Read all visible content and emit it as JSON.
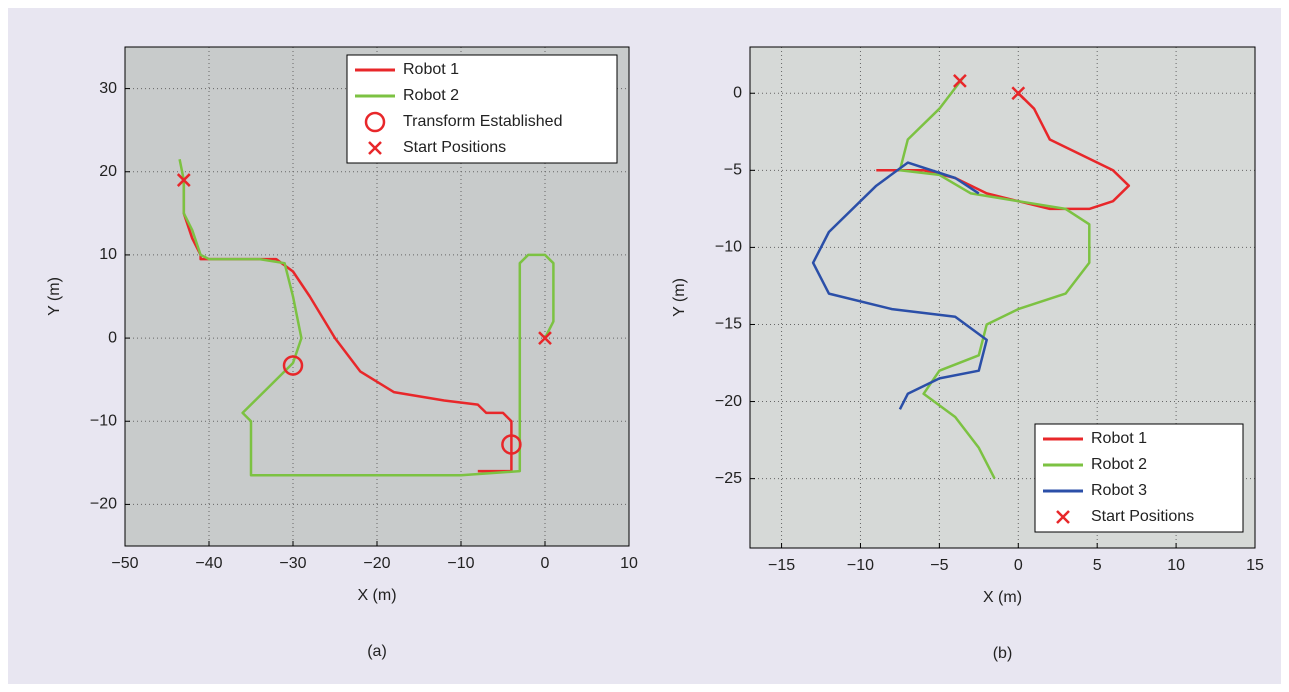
{
  "chart_data": [
    {
      "type": "line",
      "caption": "(a)",
      "xlabel": "X (m)",
      "ylabel": "Y (m)",
      "xlim": [
        -50,
        10
      ],
      "ylim": [
        -25,
        35
      ],
      "xticks": [
        {
          "value": -50,
          "label": "−50"
        },
        {
          "value": -40,
          "label": "−40"
        },
        {
          "value": -30,
          "label": "−30"
        },
        {
          "value": -20,
          "label": "−20"
        },
        {
          "value": -10,
          "label": "−10"
        },
        0,
        10
      ],
      "yticks": [
        {
          "value": -20,
          "label": "−20"
        },
        {
          "value": -10,
          "label": "−10"
        },
        0,
        10,
        20,
        30
      ],
      "grid": true,
      "legend": "upper right",
      "series": [
        {
          "name": "Robot 1",
          "color": "#e8272a",
          "marker": "line",
          "x": [
            -43,
            -43,
            -42,
            -41,
            -41,
            -34,
            -32,
            -30,
            -28,
            -25,
            -22,
            -18,
            -12,
            -8,
            -7,
            -5,
            -4,
            -4,
            -4,
            -6,
            -8
          ],
          "y": [
            19,
            15,
            12,
            10,
            9.5,
            9.5,
            9.5,
            8,
            5,
            0,
            -4,
            -6.5,
            -7.5,
            -8,
            -9,
            -9,
            -10,
            -12.5,
            -16,
            -16,
            -16
          ]
        },
        {
          "name": "Robot 2",
          "color": "#7cc242",
          "marker": "line",
          "x": [
            0,
            1,
            1,
            0,
            -2,
            -3,
            -3,
            -3,
            -3,
            -10,
            -20,
            -35,
            -35,
            -36,
            -33,
            -30,
            -29,
            -30,
            -31,
            -34,
            -40,
            -41,
            -42,
            -43,
            -43,
            -43.5
          ],
          "y": [
            0,
            2,
            9,
            10,
            10,
            9,
            0,
            -10,
            -16,
            -16.5,
            -16.5,
            -16.5,
            -10,
            -9,
            -6,
            -3,
            0,
            5,
            9,
            9.5,
            9.5,
            10,
            13,
            15,
            19,
            21.5
          ]
        },
        {
          "name": "Transform Established",
          "color": "#e8272a",
          "marker": "circle",
          "x": [
            -30,
            -4
          ],
          "y": [
            -3.3,
            -12.8
          ]
        },
        {
          "name": "Start Positions",
          "color": "#e8272a",
          "marker": "x",
          "x": [
            -43,
            0
          ],
          "y": [
            19,
            0
          ]
        }
      ]
    },
    {
      "type": "line",
      "caption": "(b)",
      "xlabel": "X (m)",
      "ylabel": "Y (m)",
      "xlim": [
        -17,
        15
      ],
      "ylim": [
        -29.5,
        3
      ],
      "xticks": [
        {
          "value": -15,
          "label": "−15"
        },
        {
          "value": -10,
          "label": "−10"
        },
        {
          "value": -5,
          "label": "−5"
        },
        0,
        5,
        10,
        15
      ],
      "yticks": [
        {
          "value": -25,
          "label": "−25"
        },
        {
          "value": -20,
          "label": "−20"
        },
        {
          "value": -15,
          "label": "−15"
        },
        {
          "value": -10,
          "label": "−10"
        },
        {
          "value": -5,
          "label": "−5"
        },
        0
      ],
      "grid": true,
      "legend": "lower right",
      "series": [
        {
          "name": "Robot 1",
          "color": "#e8272a",
          "marker": "line",
          "x": [
            0,
            1,
            2,
            4,
            6,
            7,
            6,
            4.5,
            2,
            0,
            -2,
            -4,
            -6,
            -9
          ],
          "y": [
            0,
            -1,
            -3,
            -4,
            -5,
            -6,
            -7,
            -7.5,
            -7.5,
            -7,
            -6.5,
            -5.5,
            -5,
            -5
          ]
        },
        {
          "name": "Robot 2",
          "color": "#7cc242",
          "marker": "line",
          "x": [
            -3.5,
            -5,
            -7,
            -7.5,
            -5,
            -3,
            0,
            3,
            4.5,
            4.5,
            3,
            0,
            -2,
            -2.5,
            -5,
            -6,
            -4,
            -2.5,
            -1.5
          ],
          "y": [
            1,
            -1,
            -3,
            -5,
            -5.3,
            -6.5,
            -7,
            -7.5,
            -8.5,
            -11,
            -13,
            -14,
            -15,
            -17,
            -18,
            -19.5,
            -21,
            -23,
            -25
          ]
        },
        {
          "name": "Robot 3",
          "color": "#2b4fa8",
          "marker": "line",
          "x": [
            -2.5,
            -4,
            -7,
            -9,
            -12,
            -13,
            -12,
            -8,
            -4,
            -2,
            -2.5,
            -5,
            -7,
            -7.5
          ],
          "y": [
            -6.5,
            -5.5,
            -4.5,
            -6,
            -9,
            -11,
            -13,
            -14,
            -14.5,
            -16,
            -18,
            -18.5,
            -19.5,
            -20.5
          ]
        },
        {
          "name": "Start Positions",
          "color": "#e8272a",
          "marker": "x",
          "x": [
            0,
            -3.7
          ],
          "y": [
            0,
            0.8
          ]
        }
      ]
    }
  ]
}
